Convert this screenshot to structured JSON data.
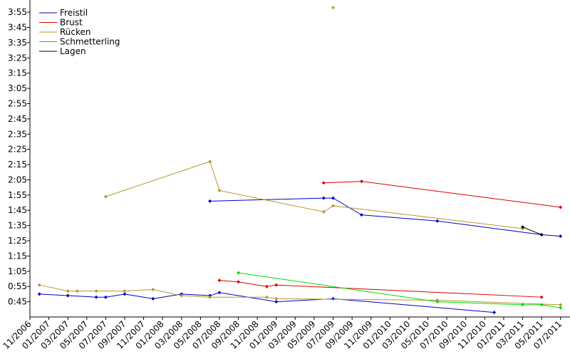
{
  "chart_data": {
    "type": "line",
    "xlim": [
      "11/2006",
      "08/2011"
    ],
    "xticks": [
      "11/2006",
      "01/2007",
      "03/2007",
      "05/2007",
      "07/2007",
      "09/2007",
      "11/2007",
      "01/2008",
      "03/2008",
      "05/2008",
      "07/2008",
      "09/2008",
      "11/2008",
      "01/2009",
      "03/2009",
      "05/2009",
      "07/2009",
      "09/2009",
      "11/2009",
      "01/2010",
      "03/2010",
      "05/2010",
      "07/2010",
      "09/2010",
      "11/2010",
      "01/2011",
      "03/2011",
      "05/2011",
      "07/2011"
    ],
    "ylim": [
      35,
      243
    ],
    "yticks": [
      {
        "value": 45,
        "label": "0:45"
      },
      {
        "value": 55,
        "label": "0:55"
      },
      {
        "value": 65,
        "label": "1:05"
      },
      {
        "value": 75,
        "label": "1:15"
      },
      {
        "value": 85,
        "label": "1:25"
      },
      {
        "value": 95,
        "label": "1:35"
      },
      {
        "value": 105,
        "label": "1:45"
      },
      {
        "value": 115,
        "label": "1:55"
      },
      {
        "value": 125,
        "label": "2:05"
      },
      {
        "value": 135,
        "label": "2:15"
      },
      {
        "value": 145,
        "label": "2:25"
      },
      {
        "value": 155,
        "label": "2:35"
      },
      {
        "value": 165,
        "label": "2:45"
      },
      {
        "value": 175,
        "label": "2:55"
      },
      {
        "value": 185,
        "label": "3:05"
      },
      {
        "value": 195,
        "label": "3:15"
      },
      {
        "value": 205,
        "label": "3:25"
      },
      {
        "value": 215,
        "label": "3:35"
      },
      {
        "value": 225,
        "label": "3:45"
      },
      {
        "value": 235,
        "label": "3:55"
      }
    ],
    "legend": "upper left",
    "series": [
      {
        "name": "Freistil",
        "color": "#0000c8",
        "x": [
          "06/2008",
          "06/2009",
          "07/2009",
          "10/2009",
          "06/2010",
          "05/2011",
          "07/2011",
          null,
          "12/2006",
          "03/2007",
          "06/2007",
          "07/2007",
          "09/2007",
          "12/2007",
          "03/2008",
          "06/2008",
          "07/2008",
          "01/2009",
          "07/2009",
          "12/2010"
        ],
        "values": [
          111,
          113,
          113,
          102,
          98,
          89,
          88,
          null,
          50,
          49,
          48,
          48,
          50,
          47,
          50,
          49,
          51,
          45,
          47,
          38
        ]
      },
      {
        "name": "Brust",
        "color": "#dc0000",
        "x": [
          "06/2009",
          "10/2009",
          "07/2011",
          null,
          "07/2008",
          "09/2008",
          "12/2008",
          "01/2009",
          "05/2011"
        ],
        "values": [
          123,
          124,
          107,
          null,
          59,
          58,
          55,
          56,
          48
        ]
      },
      {
        "name": "Rücken",
        "color": "#b8962e",
        "x": [
          "07/2007",
          "06/2008",
          "07/2008",
          "06/2009",
          "07/2009",
          "03/2011",
          null,
          "07/2009",
          null,
          "12/2006",
          "03/2007",
          "04/2007",
          "06/2007",
          "09/2007",
          "12/2007",
          "03/2008",
          "06/2008",
          "12/2008",
          "01/2009",
          "06/2010",
          "07/2011"
        ],
        "values": [
          114,
          137,
          118,
          104,
          108,
          93,
          null,
          238,
          null,
          56,
          52,
          52,
          52,
          52,
          53,
          49,
          48,
          48,
          47,
          46,
          43
        ]
      },
      {
        "name": "Schmetterling",
        "color": "#00dc00",
        "x": [
          "09/2008",
          "06/2010",
          "03/2011",
          "05/2011",
          "07/2011"
        ],
        "values": [
          64,
          45,
          43,
          43,
          41
        ]
      },
      {
        "name": "Lagen",
        "color": "#000000",
        "x": [
          "03/2011",
          "05/2011"
        ],
        "values": [
          94,
          89
        ]
      }
    ]
  }
}
